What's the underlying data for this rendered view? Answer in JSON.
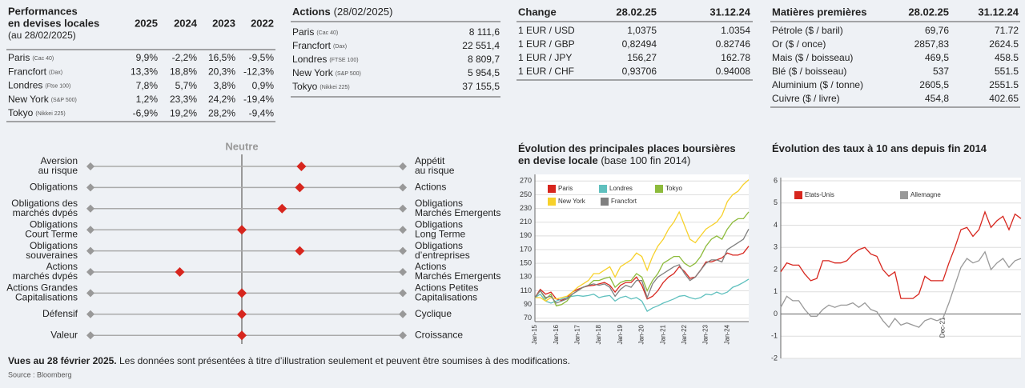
{
  "performances": {
    "title": [
      "Performances",
      "en devises locales"
    ],
    "subtitle": "(au 28/02/2025)",
    "columns": [
      "2025",
      "2024",
      "2023",
      "2022"
    ],
    "rows": [
      {
        "name": "Paris",
        "index": "(Cac 40)",
        "values": [
          "9,9%",
          "-2,2%",
          "16,5%",
          "-9,5%"
        ]
      },
      {
        "name": "Francfort",
        "index": "(Dax)",
        "values": [
          "13,3%",
          "18,8%",
          "20,3%",
          "-12,3%"
        ]
      },
      {
        "name": "Londres",
        "index": "(Ftse 100)",
        "values": [
          "7,8%",
          "5,7%",
          "3,8%",
          "0,9%"
        ]
      },
      {
        "name": "New York",
        "index": "(S&P 500)",
        "values": [
          "1,2%",
          "23,3%",
          "24,2%",
          "-19,4%"
        ]
      },
      {
        "name": "Tokyo",
        "index": "(Nikkei 225)",
        "values": [
          "-6,9%",
          "19,2%",
          "28,2%",
          "-9,4%"
        ]
      }
    ]
  },
  "actions": {
    "title": "Actions",
    "date": "(28/02/2025)",
    "rows": [
      {
        "name": "Paris",
        "index": "(Cac 40)",
        "value": "8 111,6"
      },
      {
        "name": "Francfort",
        "index": "(Dax)",
        "value": "22 551,4"
      },
      {
        "name": "Londres",
        "index": "(FTSE 100)",
        "value": "8 809,7"
      },
      {
        "name": "New York",
        "index": "(S&P 500)",
        "value": "5 954,5"
      },
      {
        "name": "Tokyo",
        "index": "(Nikkei 225)",
        "value": "37 155,5"
      }
    ]
  },
  "change": {
    "title": "Change",
    "columns": [
      "28.02.25",
      "31.12.24"
    ],
    "rows": [
      {
        "name": "1 EUR / USD",
        "values": [
          "1,0375",
          "1.0354"
        ]
      },
      {
        "name": "1 EUR / GBP",
        "values": [
          "0,82494",
          "0.82746"
        ]
      },
      {
        "name": "1 EUR / JPY",
        "values": [
          "156,27",
          "162.78"
        ]
      },
      {
        "name": "1 EUR / CHF",
        "values": [
          "0,93706",
          "0.94008"
        ]
      }
    ]
  },
  "commodities": {
    "title": "Matières premières",
    "columns": [
      "28.02.25",
      "31.12.24"
    ],
    "rows": [
      {
        "name": "Pétrole ($ / baril)",
        "values": [
          "69,76",
          "71.72"
        ]
      },
      {
        "name": "Or ($ / once)",
        "values": [
          "2857,83",
          "2624.5"
        ]
      },
      {
        "name": "Mais ($ / boisseau)",
        "values": [
          "469,5",
          "458.5"
        ]
      },
      {
        "name": "Blé ($ / boisseau)",
        "values": [
          "537",
          "551.5"
        ]
      },
      {
        "name": "Aluminium ($ / tonne)",
        "values": [
          "2605,5",
          "2551.5"
        ]
      },
      {
        "name": "Cuivre ($ / livre)",
        "values": [
          "454,8",
          "402.65"
        ]
      }
    ]
  },
  "positioning": {
    "title": "Neutre",
    "xlim": [
      -1,
      1
    ],
    "rows": [
      {
        "left": [
          "Aversion",
          "au risque"
        ],
        "right": [
          "Appétit",
          "au risque"
        ],
        "position": 0.37
      },
      {
        "left": [
          "Obligations"
        ],
        "right": [
          "Actions"
        ],
        "position": 0.36
      },
      {
        "left": [
          "Obligations des",
          "marchés dvpés"
        ],
        "right": [
          "Obligations",
          "Marchés Emergents"
        ],
        "position": 0.25
      },
      {
        "left": [
          "Obligations",
          "Court Terme"
        ],
        "right": [
          "Obligations",
          "Long Terme"
        ],
        "position": 0
      },
      {
        "left": [
          "Obligations",
          "souveraines"
        ],
        "right": [
          "Obligations",
          "d’entreprises"
        ],
        "position": 0.36
      },
      {
        "left": [
          "Actions",
          "marchés dvpés"
        ],
        "right": [
          "Actions",
          "Marchés Emergents"
        ],
        "position": -0.41
      },
      {
        "left": [
          "Actions Grandes",
          "Capitalisations"
        ],
        "right": [
          "Actions Petites",
          "Capitalisations"
        ],
        "position": 0
      },
      {
        "left": [
          "Défensif"
        ],
        "right": [
          "Cyclique"
        ],
        "position": 0
      },
      {
        "left": [
          "Valeur"
        ],
        "right": [
          "Croissance"
        ],
        "position": 0
      }
    ]
  },
  "footer": {
    "lead": "Vues au 28 février 2025.",
    "text": " Les données sont présentées à titre d’illustration seulement et peuvent être soumises à des modifications.",
    "source": "Source : Bloomberg"
  },
  "chart_data": [
    {
      "type": "line",
      "title": [
        "Évolution des principales places boursières",
        "en devise locale"
      ],
      "subtitle": " (base 100 fin 2014)",
      "categories": [
        "Jan-15",
        null,
        null,
        null,
        "Jan-16",
        null,
        null,
        null,
        "Jan-17",
        null,
        null,
        null,
        "Jan-18",
        null,
        null,
        null,
        "Jan-19",
        null,
        null,
        null,
        "Jan-20",
        null,
        null,
        null,
        "Jan-21",
        null,
        null,
        null,
        "Jan-22",
        null,
        null,
        null,
        "Jan-23",
        null,
        null,
        null,
        "Jan-24",
        null,
        null,
        null,
        null
      ],
      "ylim": [
        65,
        275
      ],
      "yticks": [
        70,
        90,
        110,
        130,
        150,
        170,
        190,
        210,
        230,
        250,
        270
      ],
      "grid": true,
      "series": [
        {
          "name": "Paris",
          "color": "#d7261e",
          "values": [
            100,
            112,
            105,
            108,
            98,
            96,
            100,
            108,
            112,
            115,
            117,
            118,
            120,
            122,
            118,
            108,
            118,
            122,
            122,
            130,
            118,
            98,
            102,
            110,
            122,
            130,
            135,
            145,
            138,
            128,
            130,
            140,
            152,
            152,
            155,
            158,
            165,
            162,
            162,
            165,
            175
          ]
        },
        {
          "name": "Londres",
          "color": "#5fc0be",
          "values": [
            100,
            105,
            95,
            92,
            95,
            98,
            100,
            102,
            103,
            102,
            103,
            105,
            100,
            102,
            103,
            95,
            100,
            102,
            98,
            100,
            95,
            80,
            85,
            88,
            92,
            95,
            98,
            102,
            103,
            100,
            98,
            100,
            105,
            104,
            108,
            105,
            108,
            115,
            118,
            122,
            127
          ]
        },
        {
          "name": "Tokyo",
          "color": "#8dbb3c",
          "values": [
            100,
            110,
            98,
            105,
            88,
            90,
            95,
            105,
            110,
            115,
            118,
            125,
            125,
            128,
            130,
            115,
            122,
            125,
            125,
            135,
            130,
            110,
            125,
            135,
            150,
            155,
            160,
            160,
            150,
            145,
            150,
            160,
            175,
            185,
            190,
            185,
            200,
            210,
            215,
            215,
            225
          ]
        },
        {
          "name": "New York",
          "color": "#f7d12b",
          "values": [
            100,
            100,
            95,
            100,
            98,
            100,
            102,
            108,
            115,
            120,
            125,
            135,
            135,
            140,
            145,
            130,
            145,
            150,
            155,
            165,
            160,
            140,
            160,
            175,
            185,
            200,
            210,
            225,
            205,
            185,
            180,
            190,
            200,
            205,
            210,
            220,
            240,
            250,
            255,
            265,
            272
          ]
        },
        {
          "name": "Francfort",
          "color": "#7f7f7f",
          "values": [
            100,
            110,
            100,
            102,
            92,
            95,
            98,
            105,
            110,
            115,
            118,
            120,
            118,
            120,
            115,
            102,
            112,
            118,
            115,
            125,
            125,
            100,
            120,
            130,
            135,
            140,
            145,
            148,
            135,
            125,
            130,
            140,
            150,
            155,
            155,
            152,
            170,
            175,
            180,
            185,
            200
          ]
        }
      ]
    },
    {
      "type": "line",
      "title": [
        "Évolution des taux à 10 ans depuis fin 2014"
      ],
      "categories": [
        null,
        null,
        null,
        null,
        null,
        null,
        null,
        null,
        null,
        null,
        null,
        null,
        null,
        null,
        null,
        null,
        null,
        null,
        null,
        null,
        null,
        null,
        null,
        null,
        null,
        null,
        null,
        "Dec-21",
        null,
        null,
        null,
        null,
        null,
        null,
        null,
        null,
        null,
        null,
        null,
        null,
        null
      ],
      "ylim": [
        -2,
        6
      ],
      "yticks": [
        -2,
        -1,
        0,
        1,
        2,
        3,
        4,
        5,
        6
      ],
      "grid": true,
      "series": [
        {
          "name": "Etats-Unis",
          "color": "#d7261e",
          "values": [
            1.9,
            2.3,
            2.2,
            2.2,
            1.8,
            1.5,
            1.6,
            2.4,
            2.4,
            2.3,
            2.3,
            2.4,
            2.7,
            2.9,
            3.0,
            2.7,
            2.6,
            2.0,
            1.7,
            1.9,
            0.7,
            0.7,
            0.7,
            0.9,
            1.7,
            1.5,
            1.5,
            1.5,
            2.3,
            3.0,
            3.8,
            3.9,
            3.5,
            3.8,
            4.6,
            3.9,
            4.2,
            4.4,
            3.8,
            4.5,
            4.3
          ]
        },
        {
          "name": "Allemagne",
          "color": "#999999",
          "values": [
            0.3,
            0.8,
            0.6,
            0.6,
            0.2,
            -0.1,
            -0.1,
            0.2,
            0.4,
            0.3,
            0.4,
            0.4,
            0.5,
            0.3,
            0.5,
            0.2,
            0.1,
            -0.3,
            -0.6,
            -0.2,
            -0.5,
            -0.4,
            -0.5,
            -0.6,
            -0.3,
            -0.2,
            -0.3,
            -0.2,
            0.5,
            1.3,
            2.1,
            2.5,
            2.3,
            2.4,
            2.8,
            2.0,
            2.3,
            2.5,
            2.1,
            2.4,
            2.5
          ]
        }
      ]
    }
  ]
}
